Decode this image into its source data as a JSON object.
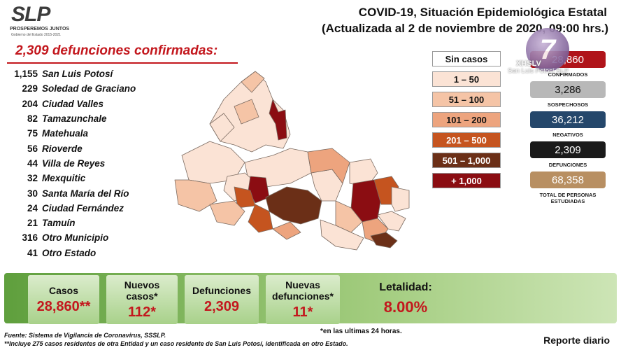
{
  "header": {
    "logo_text": "SLP",
    "logo_tagline": "PROSPEREMOS JUNTOS",
    "logo_subtitle": "Gobierno del Estado 2015-2021",
    "title_line1": "COVID-19, Situación Epidemiológica Estatal",
    "title_line2": "(Actualizada al 2 de noviembre de 2020, 09:00 hrs.)"
  },
  "deaths": {
    "title": "2,309 defunciones confirmadas:",
    "municipalities": [
      {
        "count": "1,155",
        "name": "San Luis Potosí"
      },
      {
        "count": "229",
        "name": "Soledad de Graciano"
      },
      {
        "count": "204",
        "name": "Ciudad Valles"
      },
      {
        "count": "82",
        "name": "Tamazunchale"
      },
      {
        "count": "75",
        "name": "Matehuala"
      },
      {
        "count": "56",
        "name": "Rioverde"
      },
      {
        "count": "44",
        "name": "Villa de Reyes"
      },
      {
        "count": "32",
        "name": "Mexquitic"
      },
      {
        "count": "30",
        "name": "Santa María del Río"
      },
      {
        "count": "24",
        "name": "Ciudad Fernández"
      },
      {
        "count": "21",
        "name": "Tamuín"
      },
      {
        "count": "316",
        "name": "Otro Municipio"
      },
      {
        "count": "41",
        "name": "Otro Estado"
      }
    ]
  },
  "legend": [
    {
      "label": "Sin casos",
      "color": "#ffffff",
      "text_color": "#111111"
    },
    {
      "label": "1 – 50",
      "color": "#fbe3d5",
      "text_color": "#111111"
    },
    {
      "label": "51 – 100",
      "color": "#f5c4a6",
      "text_color": "#111111"
    },
    {
      "label": "101 – 200",
      "color": "#eda47e",
      "text_color": "#111111"
    },
    {
      "label": "201 – 500",
      "color": "#c5541f",
      "text_color": "#ffffff"
    },
    {
      "label": "501 – 1,000",
      "color": "#6b2f17",
      "text_color": "#ffffff"
    },
    {
      "label": "+ 1,000",
      "color": "#8b0d12",
      "text_color": "#ffffff"
    }
  ],
  "stats": [
    {
      "value": "28,860",
      "label": "CONFIRMADOS",
      "color": "#b0141a",
      "text_color": "#ffffff"
    },
    {
      "value": "3,286",
      "label": "SOSPECHOSOS",
      "color": "#b8b8b8",
      "text_color": "#111111"
    },
    {
      "value": "36,212",
      "label": "NEGATIVOS",
      "color": "#25476b",
      "text_color": "#ffffff"
    },
    {
      "value": "2,309",
      "label": "DEFUNCIONES",
      "color": "#1a1a1a",
      "text_color": "#ffffff"
    },
    {
      "value": "68,358",
      "label": "TOTAL DE PERSONAS ESTUDIADAS",
      "color": "#b88f62",
      "text_color": "#ffffff"
    }
  ],
  "tv": {
    "number": "7",
    "name": "XHSLV",
    "channel": "San Luis Potosí SLP"
  },
  "panels": {
    "casos_label": "Casos",
    "casos_value": "28,860**",
    "nuevos_casos_label_1": "Nuevos",
    "nuevos_casos_label_2": "casos*",
    "nuevos_casos_value": "112*",
    "defunciones_label": "Defunciones",
    "defunciones_value": "2,309",
    "nuevas_def_label_1": "Nuevas",
    "nuevas_def_label_2": "defunciones*",
    "nuevas_def_value": "11*",
    "letalidad_label": "Letalidad:",
    "letalidad_value": "8.00%"
  },
  "footer": {
    "note_24h": "*en las ultimas 24 horas.",
    "source": "Fuente: Sistema de Vigilancia de Coronavirus, SSSLP.",
    "note_cases": "**Incluye 275 casos residentes de otra Entidad y un caso residente de San Luis Potosí, identificada en otro Estado.",
    "report": "Reporte diario"
  }
}
